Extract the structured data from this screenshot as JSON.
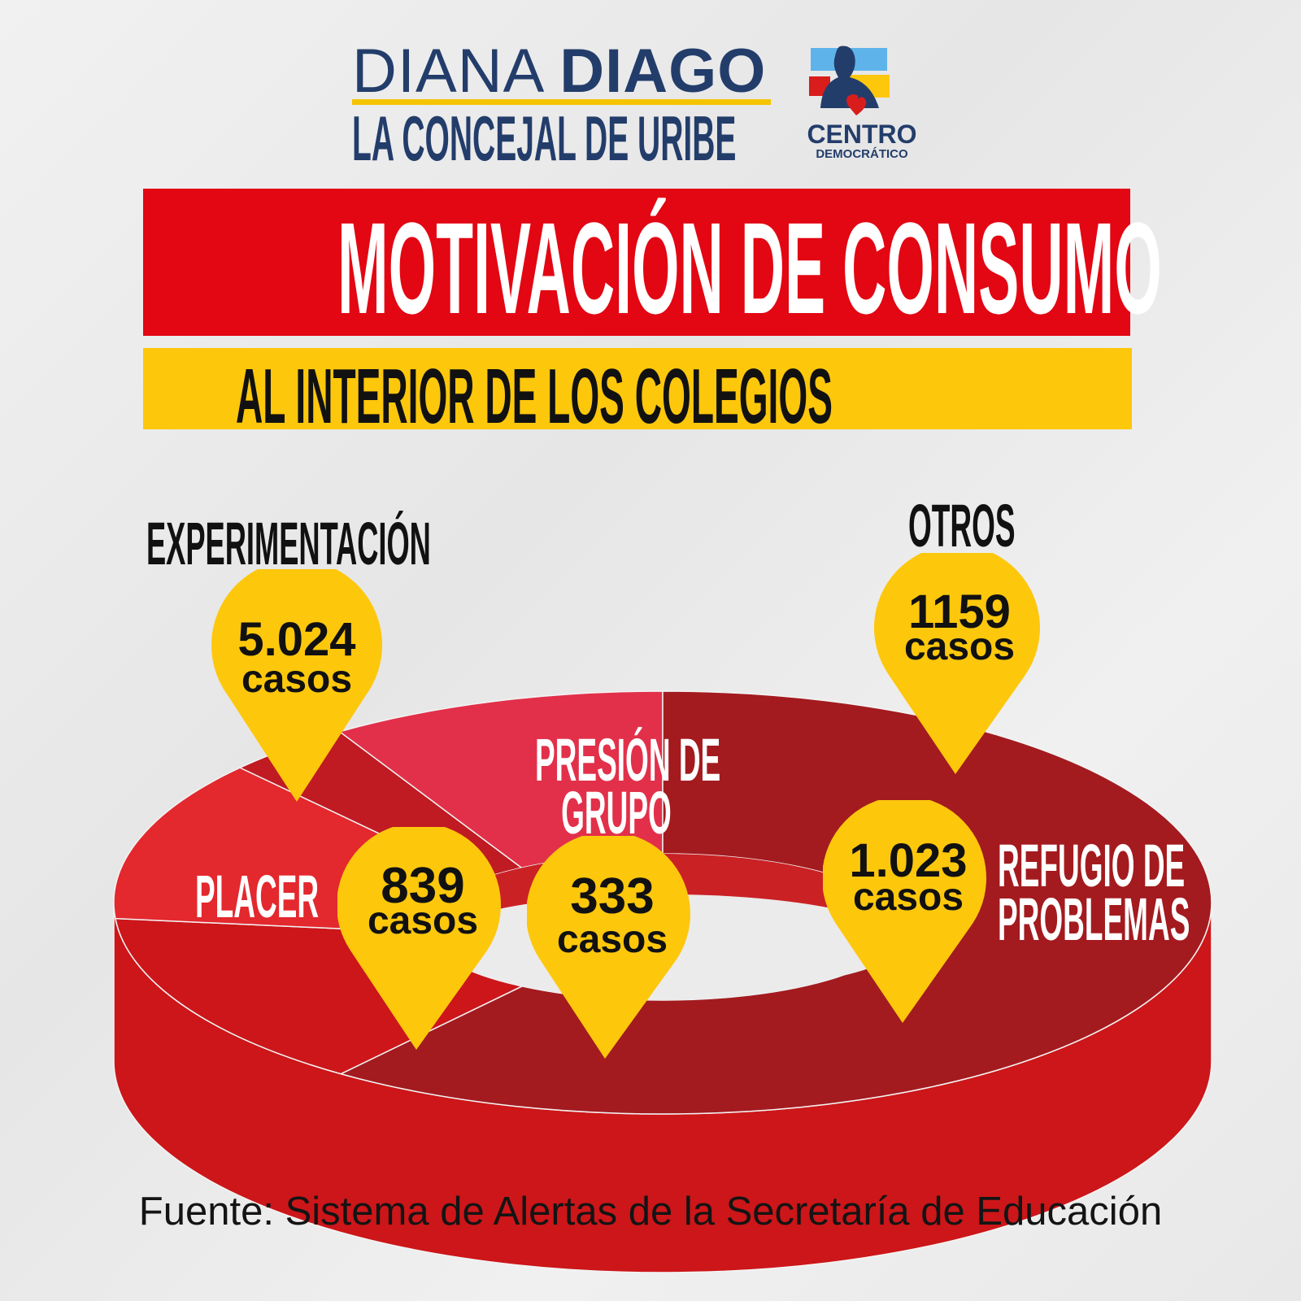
{
  "header": {
    "name_light": "DIANA",
    "name_bold": "DIAGO",
    "tagline": "LA CONCEJAL DE URIBE",
    "party_line1": "CENTRO",
    "party_line2": "DEMOCRÁTICO"
  },
  "title": "MOTIVACIÓN DE CONSUMO",
  "subtitle": "AL INTERIOR DE LOS COLEGIOS",
  "unit_label": "casos",
  "chart_data": {
    "type": "pie",
    "style": "3d-donut",
    "categories": [
      "EXPERIMENTACIÓN",
      "OTROS",
      "REFUGIO DE PROBLEMAS",
      "PRESIÓN DE GRUPO",
      "PLACER"
    ],
    "label_lines": [
      [
        "EXPERIMENTACIÓN"
      ],
      [
        "OTROS"
      ],
      [
        "REFUGIO DE",
        "PROBLEMAS"
      ],
      [
        "PRESIÓN DE",
        "GRUPO"
      ],
      [
        "PLACER"
      ]
    ],
    "values": [
      5024,
      1159,
      1023,
      333,
      839
    ],
    "value_labels": [
      "5.024",
      "1159",
      "1.023",
      "333",
      "839"
    ],
    "colors": [
      "#a31b1f",
      "#cc161a",
      "#e3282e",
      "#c01a22",
      "#e2304a"
    ],
    "marker_color": "#fdc70c",
    "legend": "none"
  },
  "footer": "Fuente: Sistema de Alertas de la Secretaría de Educación",
  "colors": {
    "brand_blue": "#233d6b",
    "banner_red": "#e30613",
    "banner_yellow": "#fdc70c"
  }
}
